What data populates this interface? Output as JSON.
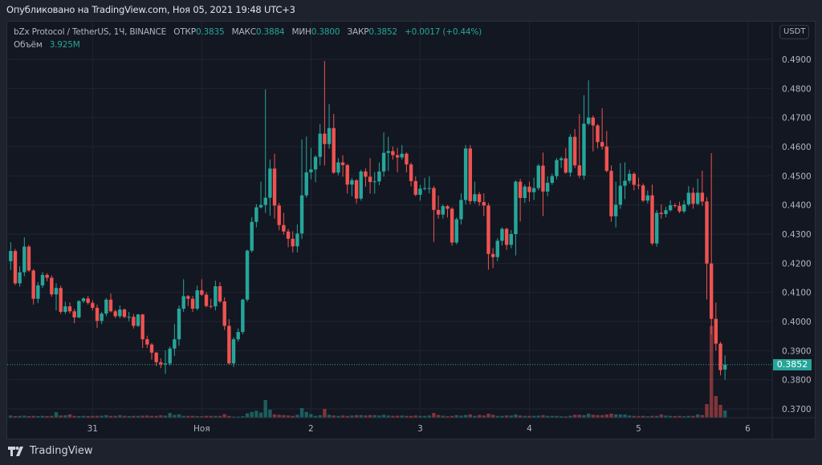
{
  "published": "Опубликовано на TradingView.com, Ноя 05, 2021 19:48 UTC+3",
  "legend": {
    "symbol": "bZx Protocol / TetherUS, 1Ч, BINANCE",
    "open_label": "ОТКР",
    "open": "0.3835",
    "high_label": "МАКС",
    "high": "0.3884",
    "low_label": "МИН",
    "low": "0.3800",
    "close_label": "ЗАКР",
    "close": "0.3852",
    "change": "+0.0017 (+0.44%)",
    "volume_label": "Объём",
    "volume": "3.925M"
  },
  "currency_badge": "USDT",
  "last_price": "0.3852",
  "footer": {
    "brand": "TradingView"
  },
  "colors": {
    "up": "#26a69a",
    "down": "#ef5350",
    "background": "#131722",
    "grid": "#1f2430"
  },
  "chart_data": {
    "type": "candlestick",
    "timeframe": "1Ч",
    "ylim": [
      0.3665,
      0.4935
    ],
    "y_ticks": [
      "0.3700",
      "0.3800",
      "0.3900",
      "0.4000",
      "0.4100",
      "0.4200",
      "0.4300",
      "0.4400",
      "0.4500",
      "0.4600",
      "0.4700",
      "0.4800",
      "0.4900"
    ],
    "x_ticks": [
      {
        "label": "31",
        "index": 18
      },
      {
        "label": "Ноя",
        "index": 42
      },
      {
        "label": "2",
        "index": 66
      },
      {
        "label": "3",
        "index": 90
      },
      {
        "label": "4",
        "index": 114
      },
      {
        "label": "5",
        "index": 138
      },
      {
        "label": "6",
        "index": 162
      }
    ],
    "grid": true,
    "volume_unit": "M",
    "candles_ohlc": [
      [
        0.4207,
        0.4272,
        0.4177,
        0.4242
      ],
      [
        0.4242,
        0.4249,
        0.4125,
        0.4131
      ],
      [
        0.4131,
        0.419,
        0.412,
        0.4169
      ],
      [
        0.4169,
        0.4289,
        0.4155,
        0.4257
      ],
      [
        0.4257,
        0.4263,
        0.417,
        0.4175
      ],
      [
        0.4175,
        0.418,
        0.4058,
        0.4078
      ],
      [
        0.4078,
        0.4135,
        0.4063,
        0.4124
      ],
      [
        0.4124,
        0.417,
        0.4115,
        0.416
      ],
      [
        0.416,
        0.4166,
        0.4138,
        0.415
      ],
      [
        0.415,
        0.4158,
        0.4085,
        0.4093
      ],
      [
        0.4093,
        0.4131,
        0.4038,
        0.4115
      ],
      [
        0.4115,
        0.4123,
        0.4026,
        0.4033
      ],
      [
        0.4033,
        0.4068,
        0.4026,
        0.4052
      ],
      [
        0.4052,
        0.4065,
        0.4028,
        0.4035
      ],
      [
        0.4035,
        0.4043,
        0.3994,
        0.4014
      ],
      [
        0.4014,
        0.4073,
        0.4011,
        0.407
      ],
      [
        0.407,
        0.4083,
        0.4063,
        0.4079
      ],
      [
        0.4079,
        0.4088,
        0.4058,
        0.4064
      ],
      [
        0.4064,
        0.4073,
        0.4038,
        0.4047
      ],
      [
        0.4047,
        0.4058,
        0.3978,
        0.4002
      ],
      [
        0.4002,
        0.4033,
        0.3991,
        0.4027
      ],
      [
        0.4027,
        0.4081,
        0.4018,
        0.4075
      ],
      [
        0.4075,
        0.4096,
        0.4031,
        0.4035
      ],
      [
        0.4035,
        0.4041,
        0.4011,
        0.4018
      ],
      [
        0.4018,
        0.4055,
        0.4011,
        0.4041
      ],
      [
        0.4041,
        0.4045,
        0.4011,
        0.4016
      ],
      [
        0.4016,
        0.4033,
        0.4001,
        0.4016
      ],
      [
        0.4016,
        0.4026,
        0.3976,
        0.3985
      ],
      [
        0.3985,
        0.4026,
        0.3981,
        0.4024
      ],
      [
        0.4024,
        0.4026,
        0.3909,
        0.3939
      ],
      [
        0.3939,
        0.3951,
        0.3909,
        0.3921
      ],
      [
        0.3921,
        0.3926,
        0.3869,
        0.3893
      ],
      [
        0.3893,
        0.3896,
        0.3847,
        0.386
      ],
      [
        0.386,
        0.3874,
        0.384,
        0.3853
      ],
      [
        0.3853,
        0.3901,
        0.382,
        0.3856
      ],
      [
        0.3856,
        0.3914,
        0.3849,
        0.3907
      ],
      [
        0.3907,
        0.3991,
        0.3882,
        0.3939
      ],
      [
        0.3939,
        0.4055,
        0.3916,
        0.4044
      ],
      [
        0.4044,
        0.4145,
        0.4033,
        0.4087
      ],
      [
        0.4087,
        0.4091,
        0.4053,
        0.4078
      ],
      [
        0.4078,
        0.4088,
        0.4033,
        0.4044
      ],
      [
        0.4044,
        0.4123,
        0.4038,
        0.4107
      ],
      [
        0.4107,
        0.4145,
        0.4088,
        0.4092
      ],
      [
        0.4092,
        0.4101,
        0.4048,
        0.4053
      ],
      [
        0.4053,
        0.4078,
        0.4045,
        0.4052
      ],
      [
        0.4052,
        0.414,
        0.4038,
        0.4121
      ],
      [
        0.4121,
        0.4135,
        0.4063,
        0.4069
      ],
      [
        0.4069,
        0.4083,
        0.3971,
        0.3985
      ],
      [
        0.3985,
        0.4008,
        0.3851,
        0.3856
      ],
      [
        0.3856,
        0.3946,
        0.3844,
        0.3939
      ],
      [
        0.3939,
        0.3976,
        0.3931,
        0.3964
      ],
      [
        0.3964,
        0.4078,
        0.3956,
        0.4075
      ],
      [
        0.4075,
        0.4247,
        0.4068,
        0.4243
      ],
      [
        0.4243,
        0.4358,
        0.4237,
        0.4342
      ],
      [
        0.4342,
        0.4403,
        0.4323,
        0.4392
      ],
      [
        0.4392,
        0.448,
        0.4388,
        0.44
      ],
      [
        0.44,
        0.4797,
        0.4373,
        0.4425
      ],
      [
        0.4425,
        0.4556,
        0.4363,
        0.4525
      ],
      [
        0.4525,
        0.4576,
        0.4353,
        0.4398
      ],
      [
        0.4398,
        0.4407,
        0.4313,
        0.4331
      ],
      [
        0.4331,
        0.4373,
        0.4298,
        0.4309
      ],
      [
        0.4309,
        0.4318,
        0.4255,
        0.4284
      ],
      [
        0.4284,
        0.431,
        0.4237,
        0.4258
      ],
      [
        0.4258,
        0.4333,
        0.4237,
        0.4302
      ],
      [
        0.4302,
        0.4625,
        0.4283,
        0.4433
      ],
      [
        0.4433,
        0.4635,
        0.4425,
        0.4512
      ],
      [
        0.4512,
        0.4596,
        0.4488,
        0.4522
      ],
      [
        0.4522,
        0.4571,
        0.4478,
        0.4565
      ],
      [
        0.4565,
        0.4678,
        0.4536,
        0.4645
      ],
      [
        0.4645,
        0.4894,
        0.4536,
        0.4609
      ],
      [
        0.4609,
        0.4746,
        0.4593,
        0.4664
      ],
      [
        0.4664,
        0.4712,
        0.4507,
        0.4511
      ],
      [
        0.4511,
        0.4561,
        0.4502,
        0.4546
      ],
      [
        0.4546,
        0.4571,
        0.4497,
        0.4537
      ],
      [
        0.4537,
        0.4541,
        0.4439,
        0.447
      ],
      [
        0.447,
        0.4493,
        0.443,
        0.4485
      ],
      [
        0.4485,
        0.4488,
        0.4405,
        0.4422
      ],
      [
        0.4422,
        0.4521,
        0.4415,
        0.4515
      ],
      [
        0.4515,
        0.4526,
        0.4463,
        0.4497
      ],
      [
        0.4497,
        0.4561,
        0.4439,
        0.4479
      ],
      [
        0.4479,
        0.4513,
        0.4439,
        0.4481
      ],
      [
        0.4481,
        0.4546,
        0.4468,
        0.4515
      ],
      [
        0.4515,
        0.4649,
        0.4497,
        0.4579
      ],
      [
        0.4579,
        0.4634,
        0.4517,
        0.4585
      ],
      [
        0.4585,
        0.4601,
        0.4556,
        0.4571
      ],
      [
        0.4571,
        0.4596,
        0.4512,
        0.4563
      ],
      [
        0.4563,
        0.4606,
        0.4556,
        0.4576
      ],
      [
        0.4576,
        0.4581,
        0.4512,
        0.4539
      ],
      [
        0.4539,
        0.4546,
        0.4464,
        0.4482
      ],
      [
        0.4482,
        0.4498,
        0.443,
        0.4435
      ],
      [
        0.4435,
        0.4469,
        0.4415,
        0.4456
      ],
      [
        0.4456,
        0.4493,
        0.445,
        0.4458
      ],
      [
        0.4458,
        0.4498,
        0.444,
        0.4458
      ],
      [
        0.4458,
        0.4465,
        0.4273,
        0.4383
      ],
      [
        0.4383,
        0.4432,
        0.4353,
        0.4367
      ],
      [
        0.4367,
        0.4402,
        0.4353,
        0.4396
      ],
      [
        0.4396,
        0.44,
        0.4357,
        0.4387
      ],
      [
        0.4387,
        0.4392,
        0.426,
        0.4271
      ],
      [
        0.4271,
        0.4357,
        0.4265,
        0.4351
      ],
      [
        0.4351,
        0.444,
        0.4333,
        0.4417
      ],
      [
        0.4417,
        0.4606,
        0.4402,
        0.4594
      ],
      [
        0.4594,
        0.4606,
        0.4402,
        0.4413
      ],
      [
        0.4413,
        0.448,
        0.4405,
        0.4437
      ],
      [
        0.4437,
        0.4445,
        0.4397,
        0.441
      ],
      [
        0.441,
        0.444,
        0.4362,
        0.4398
      ],
      [
        0.4398,
        0.4407,
        0.4178,
        0.4232
      ],
      [
        0.4232,
        0.4252,
        0.4183,
        0.4221
      ],
      [
        0.4221,
        0.4286,
        0.4207,
        0.4277
      ],
      [
        0.4277,
        0.4323,
        0.4261,
        0.4318
      ],
      [
        0.4318,
        0.4322,
        0.4246,
        0.4263
      ],
      [
        0.4263,
        0.4314,
        0.4251,
        0.43
      ],
      [
        0.43,
        0.4485,
        0.4227,
        0.448
      ],
      [
        0.448,
        0.449,
        0.4343,
        0.4424
      ],
      [
        0.4424,
        0.447,
        0.4407,
        0.4463
      ],
      [
        0.4463,
        0.448,
        0.4412,
        0.4444
      ],
      [
        0.4444,
        0.4494,
        0.4417,
        0.4458
      ],
      [
        0.4458,
        0.4541,
        0.445,
        0.4535
      ],
      [
        0.4535,
        0.458,
        0.4362,
        0.4446
      ],
      [
        0.4446,
        0.4498,
        0.443,
        0.4476
      ],
      [
        0.4476,
        0.4508,
        0.4469,
        0.4499
      ],
      [
        0.4499,
        0.4561,
        0.4488,
        0.4554
      ],
      [
        0.4554,
        0.4566,
        0.4527,
        0.456
      ],
      [
        0.456,
        0.4595,
        0.4507,
        0.4511
      ],
      [
        0.4511,
        0.4643,
        0.4497,
        0.4634
      ],
      [
        0.4634,
        0.4661,
        0.4527,
        0.4536
      ],
      [
        0.4536,
        0.4712,
        0.4492,
        0.4501
      ],
      [
        0.4501,
        0.4777,
        0.4487,
        0.4679
      ],
      [
        0.4679,
        0.4828,
        0.4673,
        0.47
      ],
      [
        0.47,
        0.4707,
        0.4584,
        0.4673
      ],
      [
        0.4673,
        0.4678,
        0.4594,
        0.4616
      ],
      [
        0.4616,
        0.4732,
        0.459,
        0.4601
      ],
      [
        0.4601,
        0.4654,
        0.4512,
        0.4517
      ],
      [
        0.4517,
        0.4536,
        0.4343,
        0.4361
      ],
      [
        0.4361,
        0.448,
        0.4323,
        0.4401
      ],
      [
        0.4401,
        0.4544,
        0.4387,
        0.4466
      ],
      [
        0.4466,
        0.4546,
        0.442,
        0.4483
      ],
      [
        0.4483,
        0.4521,
        0.4474,
        0.4507
      ],
      [
        0.4507,
        0.4513,
        0.445,
        0.4469
      ],
      [
        0.4469,
        0.4494,
        0.4454,
        0.4467
      ],
      [
        0.4467,
        0.4474,
        0.441,
        0.4415
      ],
      [
        0.4415,
        0.445,
        0.4405,
        0.4433
      ],
      [
        0.4433,
        0.447,
        0.4262,
        0.4268
      ],
      [
        0.4268,
        0.4383,
        0.4257,
        0.4373
      ],
      [
        0.4373,
        0.4402,
        0.4353,
        0.4369
      ],
      [
        0.4369,
        0.4394,
        0.4358,
        0.4382
      ],
      [
        0.4382,
        0.4416,
        0.4377,
        0.4399
      ],
      [
        0.4399,
        0.4406,
        0.4391,
        0.4397
      ],
      [
        0.4397,
        0.4411,
        0.4372,
        0.4378
      ],
      [
        0.4378,
        0.4416,
        0.4372,
        0.4402
      ],
      [
        0.4402,
        0.4465,
        0.4396,
        0.4442
      ],
      [
        0.4442,
        0.446,
        0.4387,
        0.4404
      ],
      [
        0.4404,
        0.449,
        0.4399,
        0.4442
      ],
      [
        0.4442,
        0.4518,
        0.4397,
        0.4412
      ],
      [
        0.4412,
        0.4427,
        0.4075,
        0.4199
      ],
      [
        0.4199,
        0.4578,
        0.3955,
        0.4009
      ],
      [
        0.4009,
        0.4065,
        0.39,
        0.3924
      ],
      [
        0.3924,
        0.393,
        0.3815,
        0.3833
      ],
      [
        0.3835,
        0.3884,
        0.38,
        0.3852
      ]
    ],
    "volumes": [
      1.2,
      0.9,
      1.0,
      1.1,
      0.9,
      1.0,
      0.9,
      1.0,
      0.9,
      1.0,
      3.0,
      1.2,
      1.3,
      1.8,
      1.0,
      0.9,
      1.0,
      0.9,
      1.0,
      1.0,
      1.1,
      1.4,
      1.0,
      1.0,
      1.4,
      1.0,
      0.9,
      1.0,
      1.0,
      1.1,
      1.2,
      1.0,
      1.0,
      1.3,
      1.1,
      2.6,
      1.5,
      1.8,
      1.0,
      1.0,
      1.0,
      0.9,
      0.8,
      1.0,
      1.0,
      1.0,
      1.0,
      1.9,
      1.0,
      0.6,
      0.6,
      0.8,
      2.4,
      3.2,
      3.8,
      2.8,
      9.6,
      4.4,
      1.8,
      1.6,
      1.4,
      1.2,
      1.0,
      1.6,
      5.2,
      3.2,
      2.0,
      1.0,
      1.4,
      4.8,
      1.6,
      1.2,
      1.0,
      1.2,
      1.0,
      1.2,
      1.4,
      1.4,
      1.2,
      1.4,
      1.4,
      1.2,
      1.6,
      1.2,
      1.0,
      1.1,
      1.2,
      1.0,
      1.0,
      1.2,
      1.0,
      1.0,
      1.2,
      2.6,
      1.5,
      1.1,
      0.8,
      1.0,
      1.4,
      1.1,
      1.5,
      1.8,
      1.0,
      1.5,
      1.2,
      2.2,
      1.6,
      1.0,
      1.0,
      1.2,
      1.2,
      1.8,
      1.2,
      1.0,
      1.0,
      1.0,
      1.1,
      1.4,
      1.0,
      1.0,
      1.0,
      0.8,
      0.7,
      1.1,
      1.6,
      1.6,
      1.4,
      2.2,
      1.6,
      1.4,
      1.4,
      1.8,
      2.2,
      1.8,
      1.8,
      1.8,
      1.2,
      1.0,
      0.8,
      1.0,
      0.8,
      1.0,
      1.0,
      1.8,
      1.2,
      1.0,
      0.9,
      1.0,
      0.8,
      1.0,
      1.0,
      1.8,
      1.4,
      7.4,
      50.0,
      11.8,
      7.0,
      3.925
    ]
  }
}
